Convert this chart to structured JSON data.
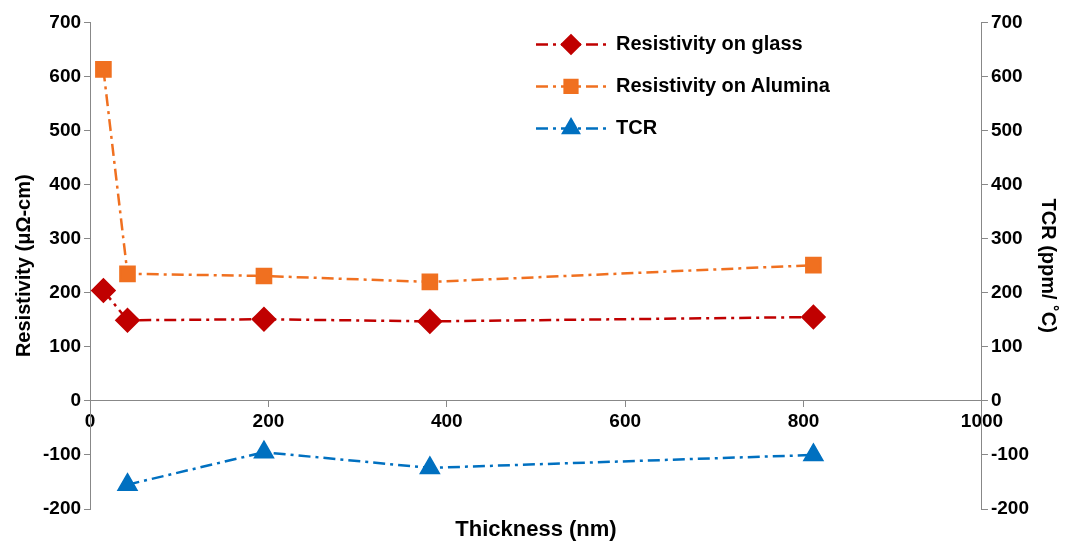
{
  "chart_data": {
    "type": "line",
    "xlabel": "Thickness (nm)",
    "ylabel": "Resistivity (μΩ-cm)",
    "y2label": "TCR (ppm/ ˚C)",
    "xlim": [
      0,
      1000
    ],
    "xticks": [
      0,
      200,
      400,
      600,
      800,
      1000
    ],
    "ylim": [
      -200,
      700
    ],
    "yticks": [
      -200,
      -100,
      0,
      100,
      200,
      300,
      400,
      500,
      600,
      700
    ],
    "y2lim": [
      -200,
      700
    ],
    "y2ticks": [
      -200,
      -100,
      0,
      100,
      200,
      300,
      400,
      500,
      600,
      700
    ],
    "grid": false,
    "legend": "top right",
    "line_style": "dashed",
    "series": [
      {
        "name": "Resistivity on glass",
        "color": "#c00000",
        "marker": "diamond",
        "x": [
          15,
          42,
          195,
          381,
          811
        ],
        "values": [
          204,
          149,
          151,
          147,
          155
        ]
      },
      {
        "name": "Resistivity on Alumina",
        "color": "#f07020",
        "marker": "square",
        "x": [
          15,
          42,
          195,
          381,
          811
        ],
        "values": [
          613,
          235,
          231,
          220,
          251
        ]
      },
      {
        "name": "TCR",
        "color": "#0070c0",
        "marker": "triangle",
        "axis": "y2",
        "x": [
          42,
          195,
          381,
          811
        ],
        "values": [
          -155,
          -95,
          -124,
          -100
        ]
      }
    ]
  }
}
